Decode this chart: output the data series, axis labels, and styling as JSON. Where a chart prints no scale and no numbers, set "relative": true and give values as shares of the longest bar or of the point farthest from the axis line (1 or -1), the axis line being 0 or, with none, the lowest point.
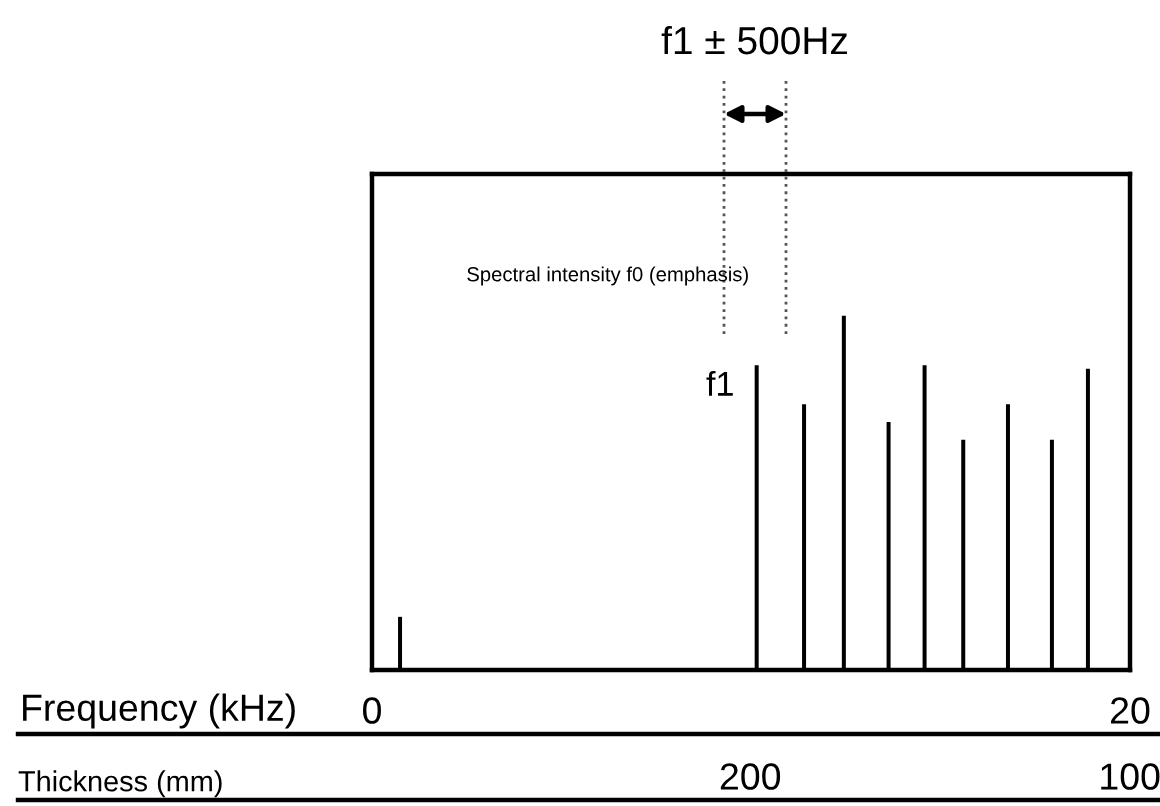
{
  "chart_data": {
    "type": "bar",
    "relative": true,
    "x": [
      0.74,
      10.15,
      11.4,
      12.45,
      13.63,
      14.58,
      15.6,
      16.78,
      17.94,
      18.89
    ],
    "values": [
      0.15,
      0.86,
      0.75,
      1,
      0.7,
      0.86,
      0.65,
      0.75,
      0.65,
      0.85
    ],
    "color": "#000000",
    "xlim": [
      0,
      20
    ],
    "xticks": [
      0,
      20
    ],
    "xlabel": "Frequency (kHz)",
    "x2lim": [
      393,
      92
    ],
    "x2ticks": [
      200,
      100
    ],
    "x2label": "Thickness (mm)",
    "annotations": [
      "f1 ± 500Hz",
      "Spectral intensity f0 (emphasis)",
      {
        "text": "f1",
        "x": 10.15,
        "y": 0.86
      }
    ]
  }
}
